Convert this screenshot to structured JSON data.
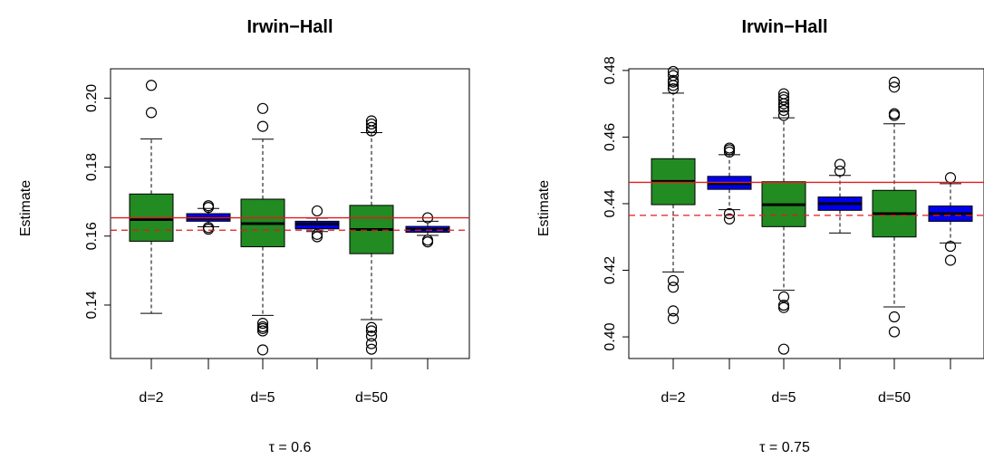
{
  "chart_data": [
    {
      "type": "boxplot",
      "title": "Irwin−Hall",
      "xlabel": "τ = 0.6",
      "ylabel": "Estimate",
      "ylim": [
        0.1245,
        0.2085
      ],
      "yticks": [
        0.14,
        0.16,
        0.18,
        0.2
      ],
      "ytick_labels": [
        "0.14",
        "0.16",
        "0.18",
        "0.20"
      ],
      "categories": [
        "d=2",
        "d=5",
        "d=50"
      ],
      "reference_lines": [
        {
          "value": 0.1653,
          "color": "#e41a1c",
          "style": "solid"
        },
        {
          "value": 0.1617,
          "color": "#e41a1c",
          "style": "dashed"
        }
      ],
      "boxes": [
        {
          "group": "d=2",
          "fill": "#228b22",
          "whisker_low": 0.1376,
          "q1": 0.1585,
          "median": 0.1648,
          "q3": 0.1722,
          "whisker_high": 0.1882,
          "outliers": [
            0.1958,
            0.2037
          ]
        },
        {
          "group": "d=2",
          "fill": "#0000ee",
          "whisker_low": 0.1627,
          "q1": 0.1643,
          "median": 0.1652,
          "q3": 0.1665,
          "whisker_high": 0.168,
          "outliers": [
            0.162,
            0.1625,
            0.1683,
            0.1688
          ]
        },
        {
          "group": "d=5",
          "fill": "#228b22",
          "whisker_low": 0.137,
          "q1": 0.1569,
          "median": 0.1636,
          "q3": 0.1707,
          "whisker_high": 0.1881,
          "outliers": [
            0.1347,
            0.1337,
            0.1332,
            0.1325,
            0.127,
            0.1918,
            0.197
          ]
        },
        {
          "group": "d=5",
          "fill": "#0000ee",
          "whisker_low": 0.1613,
          "q1": 0.1621,
          "median": 0.1635,
          "q3": 0.1643,
          "whisker_high": 0.1652,
          "outliers": [
            0.1598,
            0.1605,
            0.1673
          ]
        },
        {
          "group": "d=50",
          "fill": "#228b22",
          "whisker_low": 0.1358,
          "q1": 0.1549,
          "median": 0.1619,
          "q3": 0.1689,
          "whisker_high": 0.19,
          "outliers": [
            0.1335,
            0.1325,
            0.131,
            0.1288,
            0.1272,
            0.1905,
            0.1915,
            0.1925,
            0.1934
          ]
        },
        {
          "group": "d=50",
          "fill": "#0000ee",
          "whisker_low": 0.1602,
          "q1": 0.1611,
          "median": 0.1619,
          "q3": 0.1628,
          "whisker_high": 0.1643,
          "outliers": [
            0.1583,
            0.1588,
            0.1653
          ]
        }
      ]
    },
    {
      "type": "boxplot",
      "title": "Irwin−Hall",
      "xlabel": "τ = 0.75",
      "ylabel": "Estimate",
      "ylim": [
        0.3935,
        0.4805
      ],
      "yticks": [
        0.4,
        0.42,
        0.44,
        0.46,
        0.48
      ],
      "ytick_labels": [
        "0.40",
        "0.42",
        "0.44",
        "0.46",
        "0.48"
      ],
      "categories": [
        "d=2",
        "d=5",
        "d=50"
      ],
      "reference_lines": [
        {
          "value": 0.4464,
          "color": "#e41a1c",
          "style": "solid"
        },
        {
          "value": 0.4365,
          "color": "#e41a1c",
          "style": "dashed"
        }
      ],
      "boxes": [
        {
          "group": "d=2",
          "fill": "#228b22",
          "whisker_low": 0.4195,
          "q1": 0.4397,
          "median": 0.4467,
          "q3": 0.4535,
          "whisker_high": 0.4732,
          "outliers": [
            0.4169,
            0.4149,
            0.4078,
            0.4055,
            0.4745,
            0.4755,
            0.4765,
            0.477,
            0.4785,
            0.4797
          ]
        },
        {
          "group": "d=2",
          "fill": "#0000ee",
          "whisker_low": 0.4382,
          "q1": 0.4443,
          "median": 0.446,
          "q3": 0.4482,
          "whisker_high": 0.4547,
          "outliers": [
            0.437,
            0.4354,
            0.4555,
            0.4562,
            0.4567
          ]
        },
        {
          "group": "d=5",
          "fill": "#228b22",
          "whisker_low": 0.414,
          "q1": 0.4331,
          "median": 0.4397,
          "q3": 0.4466,
          "whisker_high": 0.4658,
          "outliers": [
            0.412,
            0.4095,
            0.4088,
            0.3963,
            0.4665,
            0.468,
            0.469,
            0.47,
            0.4712,
            0.472,
            0.473
          ]
        },
        {
          "group": "d=5",
          "fill": "#0000ee",
          "whisker_low": 0.4312,
          "q1": 0.438,
          "median": 0.44,
          "q3": 0.442,
          "whisker_high": 0.4485,
          "outliers": [
            0.4498,
            0.4518
          ]
        },
        {
          "group": "d=50",
          "fill": "#228b22",
          "whisker_low": 0.409,
          "q1": 0.43,
          "median": 0.437,
          "q3": 0.444,
          "whisker_high": 0.464,
          "outliers": [
            0.406,
            0.4015,
            0.4665,
            0.467,
            0.475,
            0.4765
          ]
        },
        {
          "group": "d=50",
          "fill": "#0000ee",
          "whisker_low": 0.4282,
          "q1": 0.4347,
          "median": 0.437,
          "q3": 0.4393,
          "whisker_high": 0.446,
          "outliers": [
            0.4272,
            0.423,
            0.4478
          ]
        }
      ]
    }
  ]
}
